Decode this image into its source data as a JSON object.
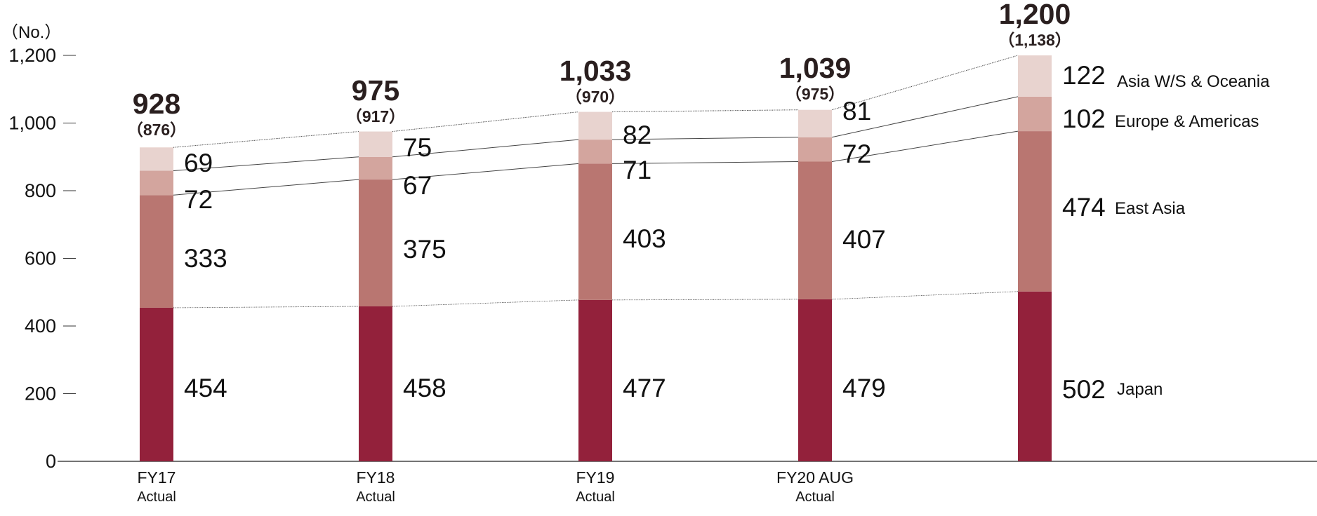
{
  "chart_data": {
    "type": "bar",
    "stacked": true,
    "unit_label": "（No.）",
    "yticks": [
      "0",
      "200",
      "400",
      "600",
      "800",
      "1,000",
      "1,200"
    ],
    "ylim": [
      0,
      1200
    ],
    "categories": [
      {
        "label": "FY17",
        "sublabel": "Actual"
      },
      {
        "label": "FY18",
        "sublabel": "Actual"
      },
      {
        "label": "FY19",
        "sublabel": "Actual"
      },
      {
        "label": "FY20 AUG",
        "sublabel": "Actual"
      },
      {
        "label": "",
        "sublabel": ""
      }
    ],
    "series": [
      {
        "name": "Japan",
        "color": "#93213b",
        "values": [
          454,
          458,
          477,
          479,
          502
        ],
        "labels": [
          "454",
          "458",
          "477",
          "479",
          "502"
        ]
      },
      {
        "name": "East Asia",
        "color": "#b97671",
        "values": [
          333,
          375,
          403,
          407,
          474
        ],
        "labels": [
          "333",
          "375",
          "403",
          "407",
          "474"
        ]
      },
      {
        "name": "Europe & Americas",
        "color": "#d3a59e",
        "values": [
          72,
          67,
          71,
          72,
          102
        ],
        "labels": [
          "72",
          "67",
          "71",
          "72",
          "102"
        ]
      },
      {
        "name": "Asia W/S & Oceania",
        "color": "#e8d3cf",
        "values": [
          69,
          75,
          82,
          81,
          122
        ],
        "labels": [
          "69",
          "75",
          "82",
          "81",
          "122"
        ]
      }
    ],
    "totals": [
      "928",
      "975",
      "1,033",
      "1,039",
      "1,200"
    ],
    "subtotals": [
      "（876）",
      "（917）",
      "（970）",
      "（975）",
      "（1,138）"
    ],
    "grid": false,
    "legend": "right"
  }
}
